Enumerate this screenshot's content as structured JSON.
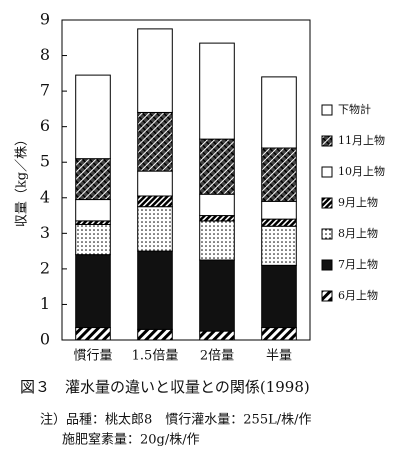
{
  "chart_data": {
    "type": "stacked_bar",
    "ylabel": "収量（kg／株）",
    "categories": [
      "慣行量",
      "1.5倍量",
      "2倍量",
      "半量"
    ],
    "series": [
      {
        "name": "6月上物",
        "pattern": "diagonal",
        "color": "#000000",
        "values": [
          0.35,
          0.3,
          0.25,
          0.35
        ]
      },
      {
        "name": "7月上物",
        "pattern": "solid",
        "color": "#111111",
        "values": [
          2.05,
          2.2,
          2.0,
          1.75
        ]
      },
      {
        "name": "8月上物",
        "pattern": "dots",
        "color": "#000000",
        "values": [
          0.85,
          1.25,
          1.1,
          1.1
        ]
      },
      {
        "name": "9月上物",
        "pattern": "dense-diagonal",
        "color": "#000000",
        "values": [
          0.1,
          0.3,
          0.15,
          0.2
        ]
      },
      {
        "name": "10月上物",
        "pattern": "none",
        "color": "#ffffff",
        "values": [
          0.6,
          0.7,
          0.6,
          0.5
        ]
      },
      {
        "name": "11月上物",
        "pattern": "crosshatch",
        "color": "#000000",
        "values": [
          1.15,
          1.65,
          1.55,
          1.5
        ]
      },
      {
        "name": "下物計",
        "pattern": "none",
        "color": "#ffffff",
        "values": [
          2.35,
          2.35,
          2.7,
          2.0
        ]
      }
    ],
    "ylim": [
      0,
      9
    ],
    "yticks": [
      0,
      1,
      2,
      3,
      4,
      5,
      6,
      7,
      8,
      9
    ],
    "legend": "right"
  },
  "caption": "図３　灌水量の違いと収量との関係(1998)",
  "notes": [
    "注）品種：桃太郎8　慣行灌水量：255L/株/作",
    "施肥窒素量：20g/株/作"
  ]
}
